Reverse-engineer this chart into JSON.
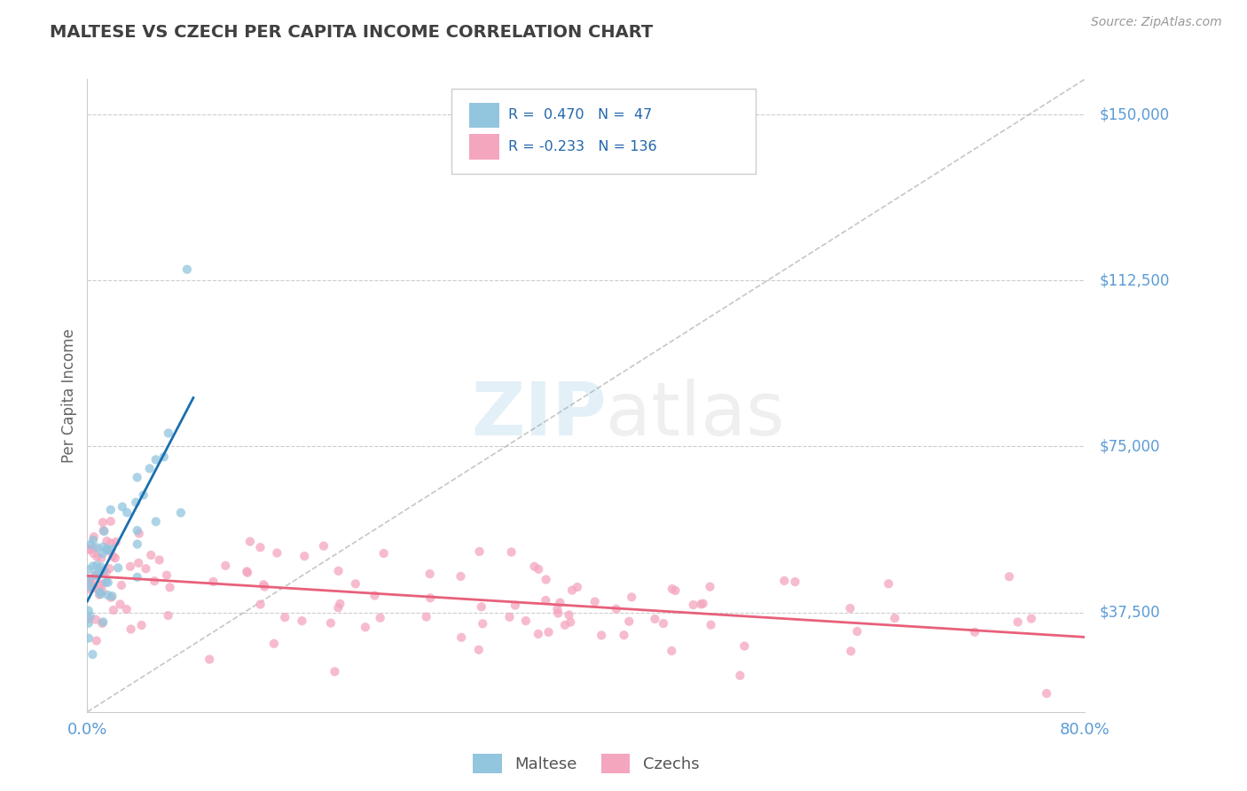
{
  "title": "MALTESE VS CZECH PER CAPITA INCOME CORRELATION CHART",
  "source": "Source: ZipAtlas.com",
  "ylabel": "Per Capita Income",
  "yticks": [
    37500,
    75000,
    112500,
    150000
  ],
  "ytick_labels": [
    "$37,500",
    "$75,000",
    "$112,500",
    "$150,000"
  ],
  "xlim": [
    0.0,
    0.8
  ],
  "ylim": [
    15000,
    158000
  ],
  "maltese_color": "#92c5de",
  "czech_color": "#f4a6be",
  "maltese_line_color": "#1a6faf",
  "czech_line_color": "#e8607a",
  "diagonal_color": "#b8b8b8",
  "background_color": "#ffffff",
  "grid_color": "#cccccc",
  "title_color": "#404040",
  "axis_label_color": "#5b9bd5",
  "legend_text_color": "#2166ac",
  "bottom_label_color": "#555555"
}
